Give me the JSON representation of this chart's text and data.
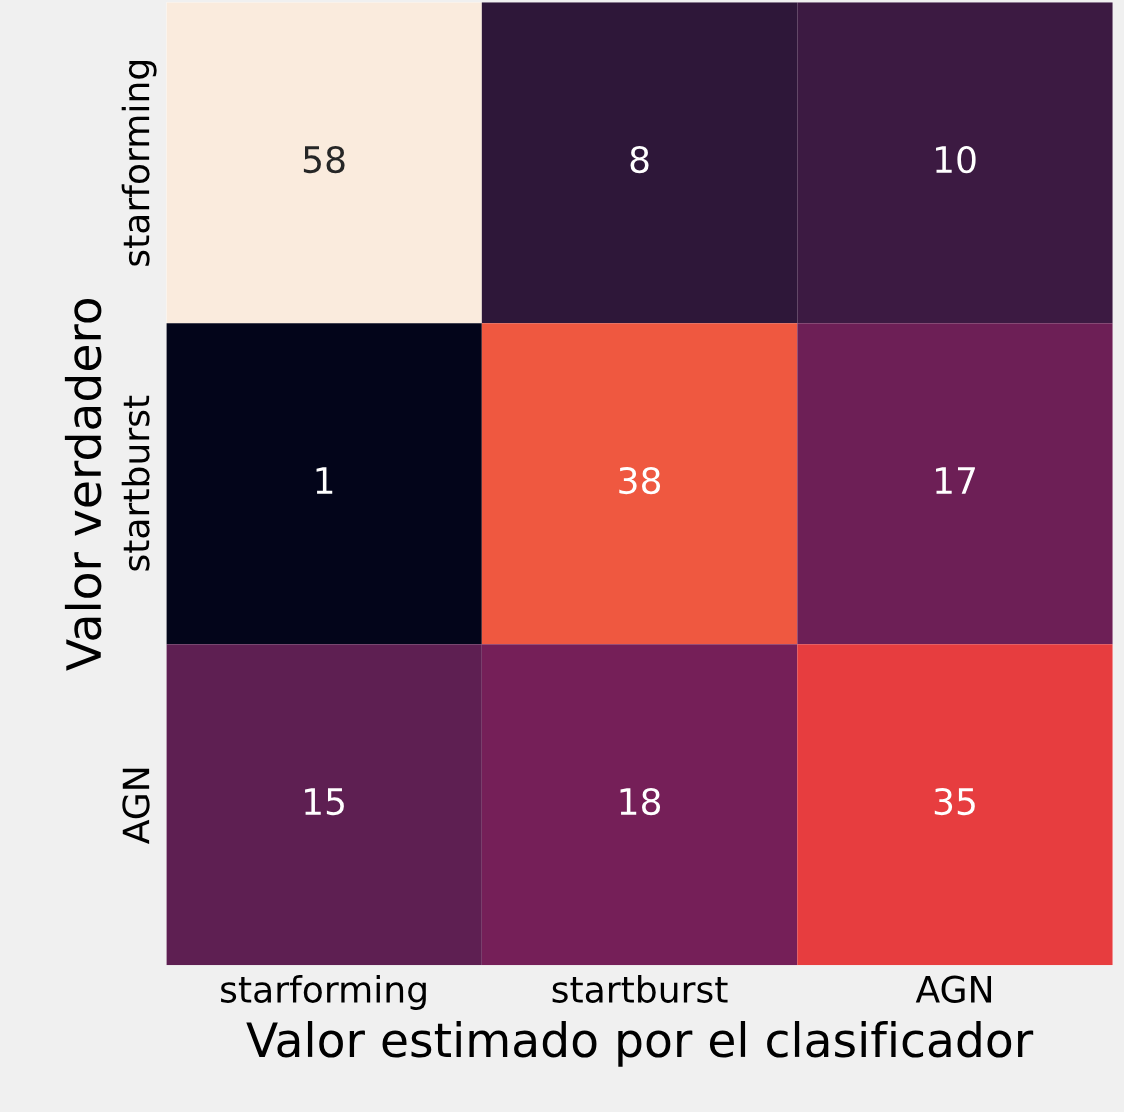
{
  "chart_data": {
    "type": "heatmap",
    "xlabel": "Valor estimado por el clasificador",
    "ylabel": "Valor verdadero",
    "categories": [
      "starforming",
      "startburst",
      "AGN"
    ],
    "y_categories": [
      "starforming",
      "startburst",
      "AGN"
    ],
    "cells": [
      [
        58,
        8,
        10
      ],
      [
        1,
        38,
        17
      ],
      [
        15,
        18,
        35
      ]
    ],
    "data_labels": true
  }
}
